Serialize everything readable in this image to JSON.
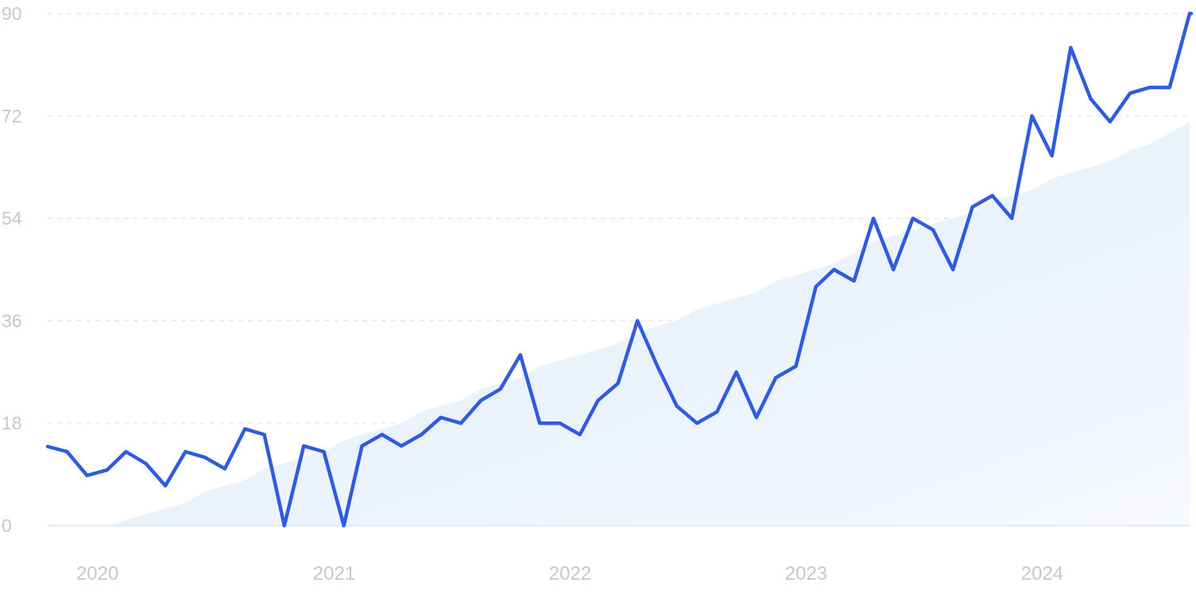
{
  "chart_data": {
    "type": "line",
    "title": "",
    "xlabel": "",
    "ylabel": "",
    "ylim": [
      0,
      90
    ],
    "xlim": [
      "2019-11-01",
      "2024-09-01"
    ],
    "yticks": [
      "0",
      "18",
      "36",
      "54",
      "72",
      "90"
    ],
    "xticks": [
      {
        "label": "2020",
        "date": "2020-01-01"
      },
      {
        "label": "2021",
        "date": "2021-01-01"
      },
      {
        "label": "2022",
        "date": "2022-01-01"
      },
      {
        "label": "2023",
        "date": "2023-01-01"
      },
      {
        "label": "2024",
        "date": "2024-01-01"
      }
    ],
    "grid": true,
    "legend": "none",
    "colors": {
      "line": "#2f5be0",
      "trend_fill": "#e3eefb",
      "grid": "#dfe5ee",
      "tick_text": "#c4c7cf"
    },
    "series": [
      {
        "role": "volume",
        "x": [
          "2019-11",
          "2019-12",
          "2020-01",
          "2020-02",
          "2020-03",
          "2020-04",
          "2020-05",
          "2020-06",
          "2020-07",
          "2020-08",
          "2020-09",
          "2020-10",
          "2020-11",
          "2020-12",
          "2021-01",
          "2021-02",
          "2021-03",
          "2021-04",
          "2021-05",
          "2021-06",
          "2021-07",
          "2021-08",
          "2021-09",
          "2021-10",
          "2021-11",
          "2021-12",
          "2022-01",
          "2022-02",
          "2022-03",
          "2022-04",
          "2022-05",
          "2022-06",
          "2022-07",
          "2022-08",
          "2022-09",
          "2022-10",
          "2022-11",
          "2022-12",
          "2023-01",
          "2023-02",
          "2023-03",
          "2023-04",
          "2023-05",
          "2023-06",
          "2023-07",
          "2023-08",
          "2023-09",
          "2023-10",
          "2023-11",
          "2023-12",
          "2024-01",
          "2024-02",
          "2024-03",
          "2024-04",
          "2024-05",
          "2024-06",
          "2024-07",
          "2024-08",
          "2024-09"
        ],
        "values": [
          13.9,
          13,
          8.8,
          9.8,
          13,
          10.9,
          7,
          13,
          12,
          10,
          17,
          16,
          0,
          14,
          13,
          0,
          14,
          16,
          14,
          16,
          19,
          18,
          22,
          24,
          30,
          18,
          18,
          16,
          22,
          25,
          36,
          28,
          21,
          18,
          20,
          27,
          19,
          26,
          28,
          42,
          45,
          43,
          54,
          45,
          54,
          52,
          45,
          56,
          58,
          54,
          72,
          65,
          84,
          75,
          71,
          76,
          77,
          77,
          90
        ]
      },
      {
        "role": "trend",
        "x": [
          "2019-11",
          "2019-12",
          "2020-01",
          "2020-02",
          "2020-03",
          "2020-04",
          "2020-05",
          "2020-06",
          "2020-07",
          "2020-08",
          "2020-09",
          "2020-10",
          "2020-11",
          "2020-12",
          "2021-01",
          "2021-02",
          "2021-03",
          "2021-04",
          "2021-05",
          "2021-06",
          "2021-07",
          "2021-08",
          "2021-09",
          "2021-10",
          "2021-11",
          "2021-12",
          "2022-01",
          "2022-02",
          "2022-03",
          "2022-04",
          "2022-05",
          "2022-06",
          "2022-07",
          "2022-08",
          "2022-09",
          "2022-10",
          "2022-11",
          "2022-12",
          "2023-01",
          "2023-02",
          "2023-03",
          "2023-04",
          "2023-05",
          "2023-06",
          "2023-07",
          "2023-08",
          "2023-09",
          "2023-10",
          "2023-11",
          "2023-12",
          "2024-01",
          "2024-02",
          "2024-03",
          "2024-04",
          "2024-05",
          "2024-06",
          "2024-07",
          "2024-08",
          "2024-09"
        ],
        "values": [
          0,
          0,
          0,
          0,
          1,
          2,
          3,
          4,
          6,
          7,
          8,
          10,
          11,
          12,
          13,
          15,
          16,
          17,
          18,
          20,
          21,
          22,
          24,
          25,
          26,
          28,
          29,
          30,
          31,
          32,
          34,
          35,
          36,
          38,
          39,
          40,
          41,
          43,
          44,
          45,
          46,
          48,
          50,
          51,
          52,
          53,
          54,
          55,
          57,
          58,
          59,
          61,
          62,
          63,
          64,
          66,
          67,
          69,
          71
        ]
      }
    ]
  }
}
